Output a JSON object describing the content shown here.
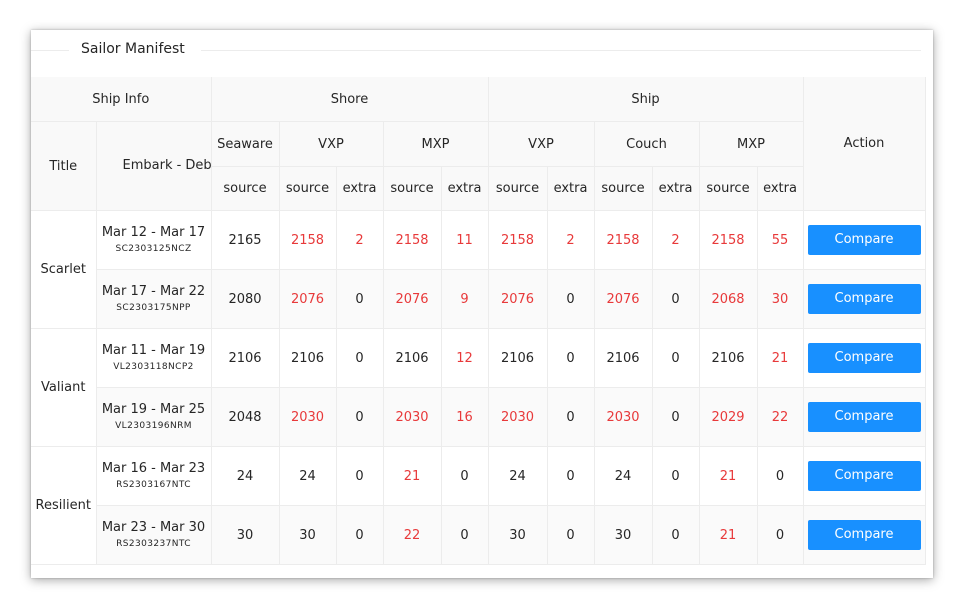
{
  "panel": {
    "title": "Sailor Manifest"
  },
  "headers": {
    "ship_info": "Ship Info",
    "shore": "Shore",
    "ship": "Ship",
    "action": "Action",
    "title": "Title",
    "embark": "Embark - Debark",
    "seaware": "Seaware",
    "shore_vxp": "VXP",
    "shore_mxp": "MXP",
    "ship_vxp": "VXP",
    "ship_couch": "Couch",
    "ship_mxp": "MXP",
    "source": "source",
    "extra": "extra"
  },
  "colors": {
    "mismatch": "#e8393a",
    "button": "#1890ff"
  },
  "groups": [
    {
      "title": "Scarlet",
      "rows": [
        {
          "dates": "Mar 12 - Mar 17",
          "code": "SC2303125NCZ",
          "cells": [
            {
              "v": "2165",
              "red": false
            },
            {
              "v": "2158",
              "red": true
            },
            {
              "v": "2",
              "red": true
            },
            {
              "v": "2158",
              "red": true
            },
            {
              "v": "11",
              "red": true
            },
            {
              "v": "2158",
              "red": true
            },
            {
              "v": "2",
              "red": true
            },
            {
              "v": "2158",
              "red": true
            },
            {
              "v": "2",
              "red": true
            },
            {
              "v": "2158",
              "red": true
            },
            {
              "v": "55",
              "red": true
            }
          ],
          "action": "Compare"
        },
        {
          "dates": "Mar 17 - Mar 22",
          "code": "SC2303175NPP",
          "cells": [
            {
              "v": "2080",
              "red": false
            },
            {
              "v": "2076",
              "red": true
            },
            {
              "v": "0",
              "red": false
            },
            {
              "v": "2076",
              "red": true
            },
            {
              "v": "9",
              "red": true
            },
            {
              "v": "2076",
              "red": true
            },
            {
              "v": "0",
              "red": false
            },
            {
              "v": "2076",
              "red": true
            },
            {
              "v": "0",
              "red": false
            },
            {
              "v": "2068",
              "red": true
            },
            {
              "v": "30",
              "red": true
            }
          ],
          "action": "Compare"
        }
      ]
    },
    {
      "title": "Valiant",
      "rows": [
        {
          "dates": "Mar 11 - Mar 19",
          "code": "VL2303118NCP2",
          "cells": [
            {
              "v": "2106",
              "red": false
            },
            {
              "v": "2106",
              "red": false
            },
            {
              "v": "0",
              "red": false
            },
            {
              "v": "2106",
              "red": false
            },
            {
              "v": "12",
              "red": true
            },
            {
              "v": "2106",
              "red": false
            },
            {
              "v": "0",
              "red": false
            },
            {
              "v": "2106",
              "red": false
            },
            {
              "v": "0",
              "red": false
            },
            {
              "v": "2106",
              "red": false
            },
            {
              "v": "21",
              "red": true
            }
          ],
          "action": "Compare"
        },
        {
          "dates": "Mar 19 - Mar 25",
          "code": "VL2303196NRM",
          "cells": [
            {
              "v": "2048",
              "red": false
            },
            {
              "v": "2030",
              "red": true
            },
            {
              "v": "0",
              "red": false
            },
            {
              "v": "2030",
              "red": true
            },
            {
              "v": "16",
              "red": true
            },
            {
              "v": "2030",
              "red": true
            },
            {
              "v": "0",
              "red": false
            },
            {
              "v": "2030",
              "red": true
            },
            {
              "v": "0",
              "red": false
            },
            {
              "v": "2029",
              "red": true
            },
            {
              "v": "22",
              "red": true
            }
          ],
          "action": "Compare"
        }
      ]
    },
    {
      "title": "Resilient",
      "rows": [
        {
          "dates": "Mar 16 - Mar 23",
          "code": "RS2303167NTC",
          "cells": [
            {
              "v": "24",
              "red": false
            },
            {
              "v": "24",
              "red": false
            },
            {
              "v": "0",
              "red": false
            },
            {
              "v": "21",
              "red": true
            },
            {
              "v": "0",
              "red": false
            },
            {
              "v": "24",
              "red": false
            },
            {
              "v": "0",
              "red": false
            },
            {
              "v": "24",
              "red": false
            },
            {
              "v": "0",
              "red": false
            },
            {
              "v": "21",
              "red": true
            },
            {
              "v": "0",
              "red": false
            }
          ],
          "action": "Compare"
        },
        {
          "dates": "Mar 23 - Mar 30",
          "code": "RS2303237NTC",
          "cells": [
            {
              "v": "30",
              "red": false
            },
            {
              "v": "30",
              "red": false
            },
            {
              "v": "0",
              "red": false
            },
            {
              "v": "22",
              "red": true
            },
            {
              "v": "0",
              "red": false
            },
            {
              "v": "30",
              "red": false
            },
            {
              "v": "0",
              "red": false
            },
            {
              "v": "30",
              "red": false
            },
            {
              "v": "0",
              "red": false
            },
            {
              "v": "21",
              "red": true
            },
            {
              "v": "0",
              "red": false
            }
          ],
          "action": "Compare"
        }
      ]
    }
  ]
}
